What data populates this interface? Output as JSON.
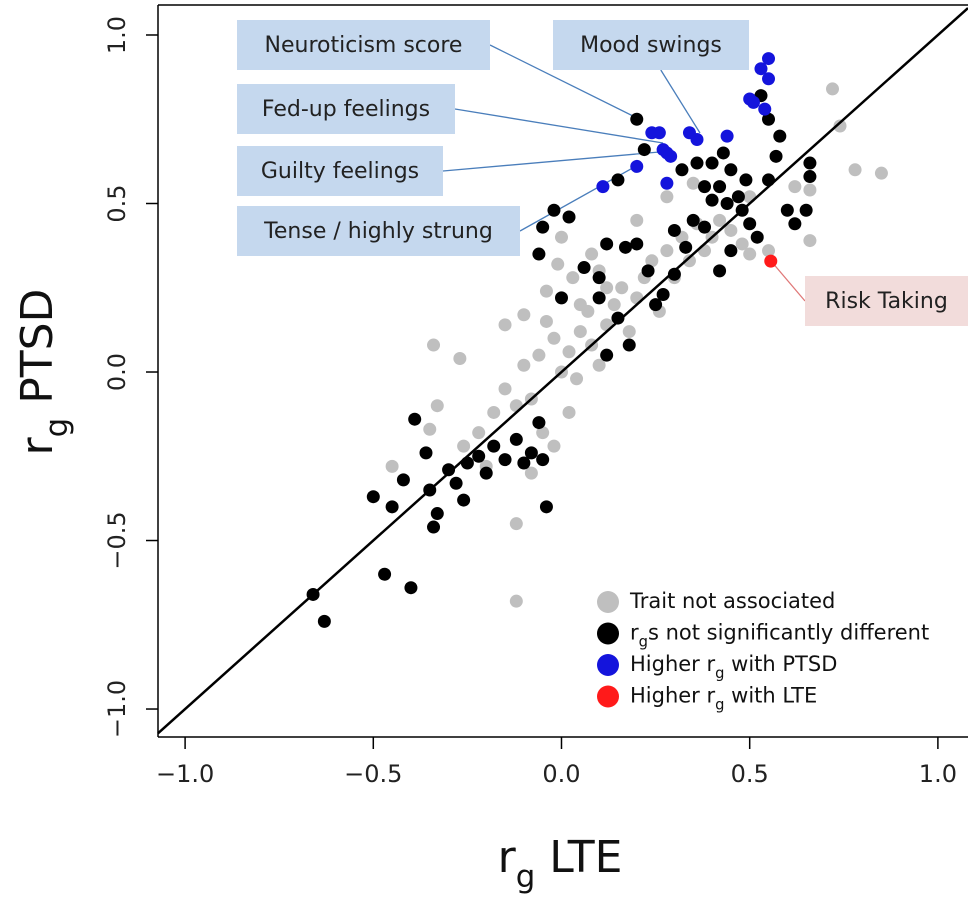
{
  "chart_data": {
    "type": "scatter",
    "x_label": [
      "r",
      "g",
      " LTE"
    ],
    "y_label": [
      "r",
      "g",
      " PTSD"
    ],
    "xlim": [
      -1.072,
      1.08
    ],
    "ylim": [
      -1.083,
      1.089
    ],
    "xticks": [
      {
        "value": -1,
        "label": "−1.0"
      },
      {
        "value": -0.5,
        "label": "−0.5"
      },
      {
        "value": 0,
        "label": "0.0"
      },
      {
        "value": 0.5,
        "label": "0.5"
      },
      {
        "value": 1,
        "label": "1.0"
      }
    ],
    "yticks": [
      {
        "value": -1,
        "label": "−1.0"
      },
      {
        "value": -0.5,
        "label": "−0.5"
      },
      {
        "value": 0,
        "label": "0.0"
      },
      {
        "value": 0.5,
        "label": "0.5"
      },
      {
        "value": 1,
        "label": "1.0"
      }
    ],
    "identity_line": true,
    "series": [
      {
        "name": [
          "Trait not associated"
        ],
        "color": "#bfbfbf",
        "x": [
          -0.12,
          -0.12,
          -0.45,
          -0.35,
          -0.33,
          -0.34,
          -0.27,
          -0.26,
          -0.22,
          -0.18,
          -0.15,
          -0.12,
          -0.1,
          -0.08,
          -0.06,
          -0.04,
          -0.02,
          0,
          0.02,
          0.04,
          0.05,
          0.07,
          0.08,
          0.1,
          0.12,
          0.14,
          0.16,
          0.18,
          0.2,
          0.22,
          0.24,
          0.26,
          0.28,
          0.3,
          0.32,
          0.34,
          0.36,
          0.38,
          0.4,
          0.42,
          0.45,
          0.48,
          0.5,
          0.55,
          0.66,
          0.66,
          0.72,
          0.74,
          0.78,
          0.85,
          -0.01,
          0.03,
          0.08,
          -0.1,
          -0.15,
          -0.05,
          0.02,
          0.05,
          0.1,
          0.12,
          -0.2,
          -0.08,
          -0.02,
          0,
          0.2,
          0.28,
          0.35,
          0.5,
          0.62,
          -0.04
        ],
        "y": [
          -0.68,
          -0.45,
          -0.28,
          -0.17,
          -0.1,
          0.08,
          0.04,
          -0.22,
          -0.18,
          -0.12,
          -0.05,
          -0.1,
          0.02,
          -0.08,
          0.05,
          0.15,
          0.1,
          0,
          0.06,
          -0.02,
          0.12,
          0.18,
          0.08,
          0.02,
          0.14,
          0.2,
          0.25,
          0.12,
          0.22,
          0.28,
          0.33,
          0.18,
          0.36,
          0.28,
          0.4,
          0.33,
          0.44,
          0.36,
          0.4,
          0.45,
          0.42,
          0.38,
          0.35,
          0.36,
          0.54,
          0.39,
          0.84,
          0.73,
          0.6,
          0.59,
          0.32,
          0.28,
          0.35,
          0.17,
          0.14,
          -0.18,
          -0.12,
          0.2,
          0.3,
          0.25,
          -0.28,
          -0.3,
          -0.22,
          0.4,
          0.45,
          0.52,
          0.56,
          0.52,
          0.55,
          0.24
        ]
      },
      {
        "name": [
          "r",
          "g",
          "s not significantly different"
        ],
        "color": "#000000",
        "x": [
          -0.66,
          -0.63,
          -0.47,
          -0.4,
          -0.5,
          -0.45,
          -0.42,
          -0.39,
          -0.36,
          -0.35,
          -0.34,
          -0.33,
          -0.3,
          -0.28,
          -0.26,
          -0.25,
          -0.22,
          -0.2,
          -0.18,
          -0.15,
          -0.12,
          -0.1,
          -0.08,
          -0.05,
          -0.04,
          -0.06,
          -0.02,
          -0.05,
          0.02,
          -0.06,
          0.1,
          0.12,
          0.06,
          0.12,
          0.17,
          0.2,
          0.23,
          0.25,
          0.27,
          0.3,
          0.33,
          0.35,
          0.38,
          0.4,
          0.42,
          0.4,
          0.43,
          0.45,
          0.47,
          0.48,
          0.5,
          0.52,
          0.55,
          0.57,
          0.55,
          0.53,
          0.58,
          0.6,
          0.62,
          0.65,
          0.66,
          0.66,
          0.2,
          0.22,
          0.38,
          0.32,
          0.36,
          0.15,
          0.3,
          0.45,
          0.42,
          0.1,
          0.15,
          0,
          0.18,
          0.44,
          0.49
        ],
        "y": [
          -0.66,
          -0.74,
          -0.6,
          -0.64,
          -0.37,
          -0.4,
          -0.32,
          -0.14,
          -0.24,
          -0.35,
          -0.46,
          -0.42,
          -0.29,
          -0.33,
          -0.38,
          -0.27,
          -0.25,
          -0.3,
          -0.22,
          -0.26,
          -0.2,
          -0.27,
          -0.24,
          -0.26,
          -0.4,
          -0.15,
          0.48,
          0.43,
          0.46,
          0.35,
          0.22,
          0.05,
          0.31,
          0.38,
          0.37,
          0.38,
          0.3,
          0.2,
          0.23,
          0.29,
          0.37,
          0.45,
          0.43,
          0.51,
          0.55,
          0.62,
          0.65,
          0.6,
          0.52,
          0.48,
          0.44,
          0.4,
          0.57,
          0.64,
          0.75,
          0.82,
          0.7,
          0.48,
          0.44,
          0.48,
          0.58,
          0.62,
          0.75,
          0.66,
          0.55,
          0.6,
          0.62,
          0.57,
          0.42,
          0.36,
          0.3,
          0.28,
          0.16,
          0.22,
          0.08,
          0.5,
          0.57
        ]
      },
      {
        "name": [
          "Higher r",
          "g",
          " with PTSD"
        ],
        "color": "#1414dc",
        "x": [
          0.55,
          0.53,
          0.55,
          0.5,
          0.51,
          0.54,
          0.44,
          0.36,
          0.34,
          0.24,
          0.26,
          0.27,
          0.29,
          0.28,
          0.2,
          0.11,
          0.28
        ],
        "y": [
          0.93,
          0.9,
          0.87,
          0.81,
          0.8,
          0.78,
          0.7,
          0.69,
          0.71,
          0.71,
          0.71,
          0.66,
          0.64,
          0.65,
          0.61,
          0.55,
          0.56
        ]
      },
      {
        "name": [
          "Higher r",
          "g",
          " with LTE"
        ],
        "color": "#ff1a1a",
        "x": [
          0.556
        ],
        "y": [
          0.329
        ]
      }
    ],
    "annotations": [
      {
        "text": "Neuroticism score"
      },
      {
        "text": "Mood swings"
      },
      {
        "text": "Fed-up feelings"
      },
      {
        "text": "Guilty feelings"
      },
      {
        "text": "Tense / highly strung"
      },
      {
        "text": "Risk Taking"
      }
    ]
  }
}
